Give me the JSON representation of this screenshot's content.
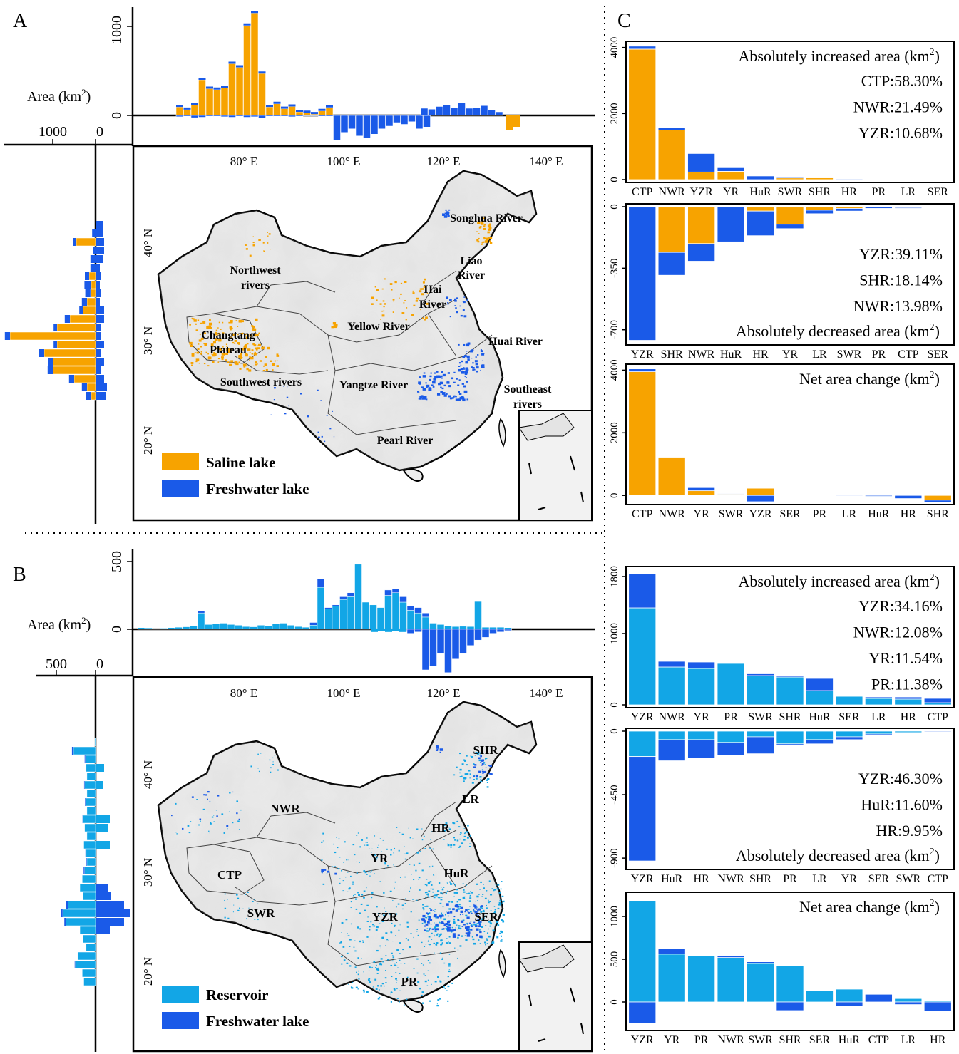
{
  "colors": {
    "saline": "#F7A300",
    "freshwater": "#1A5AE8",
    "reservoir": "#12A6E6",
    "axis": "#000000",
    "map_fill": "#EEEEEE",
    "map_border": "#000000"
  },
  "panel_labels": {
    "a": "A",
    "b": "B",
    "c": "C"
  },
  "area_axis_label": "Area (km",
  "area_axis_sup": "2",
  "area_axis_close": ")",
  "panelA": {
    "top_hist": {
      "ytick_pos": "1000",
      "ytick_zero": "0",
      "x_ticks": [
        "80° E",
        "100° E",
        "120° E",
        "140° E"
      ],
      "pos_saline": [
        95,
        65,
        115,
        400,
        300,
        290,
        310,
        580,
        540,
        1010,
        1150,
        470,
        95,
        130,
        75,
        100,
        40,
        30,
        15,
        50,
        90
      ],
      "pos_fresh": [
        10,
        15,
        20,
        40,
        25,
        20,
        15,
        20,
        30,
        40,
        25,
        25,
        20,
        15,
        15,
        20,
        10,
        10,
        5,
        10,
        15,
        80,
        70,
        100,
        120,
        90,
        140,
        80,
        90,
        110,
        60,
        40
      ],
      "neg_fresh": [
        15,
        10,
        25,
        20,
        10,
        10,
        15,
        20,
        10,
        20,
        15,
        30,
        10,
        10,
        10,
        15,
        10,
        5,
        5,
        10,
        10,
        280,
        190,
        150,
        230,
        250,
        210,
        150,
        120,
        80,
        100,
        70,
        150,
        130
      ]
    },
    "left_hist": {
      "xtick_pos": "1000",
      "xtick_zero": "0"
    },
    "map": {
      "lon_labels": [
        "80° E",
        "100° E",
        "120° E",
        "140° E"
      ],
      "lat_labels": [
        "40° N",
        "30° N",
        "20° N"
      ],
      "regions": [
        "Songhua River",
        "Liao",
        "River",
        "Northwest",
        "rivers",
        "Hai",
        "River",
        "Yellow River",
        "Changtang",
        "Plateau",
        "Huai River",
        "Southwest rivers",
        "Yangtze River",
        "Southeast",
        "rivers",
        "Pearl River"
      ],
      "legend": [
        "Saline lake",
        "Freshwater lake"
      ]
    }
  },
  "panelB": {
    "top_hist": {
      "ytick_pos": "500",
      "ytick_zero": "0",
      "x_ticks": [
        "80° E",
        "100° E",
        "120° E",
        "140° E"
      ]
    },
    "left_hist": {
      "xtick_pos": "500",
      "xtick_zero": "0"
    },
    "map": {
      "lon_labels": [
        "80° E",
        "100° E",
        "120° E",
        "140° E"
      ],
      "lat_labels": [
        "40° N",
        "30° N",
        "20° N"
      ],
      "regions": [
        "SHR",
        "NWR",
        "LR",
        "HR",
        "YR",
        "CTP",
        "HuR",
        "SWR",
        "YZR",
        "SER",
        "PR"
      ],
      "legend": [
        "Reservoir",
        "Freshwater lake"
      ]
    }
  },
  "chart_data": [
    {
      "type": "bar",
      "title": "Absolutely increased area (km2)",
      "ylim": [
        0,
        4100
      ],
      "yticks": [
        "0",
        "2000",
        "4000"
      ],
      "categories": [
        "CTP",
        "NWR",
        "YZR",
        "YR",
        "HuR",
        "SWR",
        "SHR",
        "HR",
        "PR",
        "LR",
        "SER"
      ],
      "series": [
        {
          "name": "Saline lake",
          "values": [
            3950,
            1500,
            230,
            250,
            0,
            50,
            60,
            0,
            0,
            0,
            0
          ]
        },
        {
          "name": "Freshwater lake",
          "values": [
            90,
            80,
            560,
            110,
            110,
            40,
            10,
            20,
            10,
            5,
            5
          ]
        }
      ],
      "annotations": [
        "CTP:58.30%",
        "NWR:21.49%",
        "YZR:10.68%"
      ]
    },
    {
      "type": "bar",
      "title": "Absolutely decreased area (km2)",
      "ylim": [
        -770,
        0
      ],
      "yticks": [
        "0",
        "-350",
        "-700"
      ],
      "categories": [
        "YZR",
        "SHR",
        "NWR",
        "HuR",
        "HR",
        "YR",
        "LR",
        "SWR",
        "PR",
        "CTP",
        "SER"
      ],
      "series": [
        {
          "name": "Saline lake",
          "values": [
            0,
            -260,
            -210,
            0,
            -25,
            -100,
            -20,
            -10,
            0,
            -5,
            0
          ]
        },
        {
          "name": "Freshwater lake",
          "values": [
            -760,
            -130,
            -100,
            -200,
            -140,
            -25,
            -20,
            -15,
            -10,
            -5,
            -5
          ]
        }
      ],
      "annotations": [
        "YZR:39.11%",
        "SHR:18.14%",
        "NWR:13.98%"
      ]
    },
    {
      "type": "bar",
      "title": "Net area change (km2)",
      "ylim": [
        -200,
        4100
      ],
      "yticks": [
        "0",
        "2000",
        "4000"
      ],
      "categories": [
        "CTP",
        "NWR",
        "YR",
        "SWR",
        "YZR",
        "SER",
        "PR",
        "LR",
        "HuR",
        "HR",
        "SHR"
      ],
      "series": [
        {
          "name": "Saline lake",
          "values": [
            3950,
            1230,
            150,
            40,
            230,
            0,
            0,
            0,
            0,
            0,
            -150
          ]
        },
        {
          "name": "Freshwater lake",
          "values": [
            90,
            10,
            100,
            20,
            -200,
            0,
            0,
            -20,
            -30,
            -100,
            -80
          ]
        }
      ],
      "annotations": []
    },
    {
      "type": "bar",
      "title": "Absolutely increased area (km2)",
      "ylim": [
        0,
        1900
      ],
      "yticks": [
        "0",
        "1000",
        "1800"
      ],
      "categories": [
        "YZR",
        "NWR",
        "YR",
        "PR",
        "SWR",
        "SHR",
        "HuR",
        "SER",
        "LR",
        "HR",
        "CTP"
      ],
      "series": [
        {
          "name": "Reservoir",
          "values": [
            1360,
            530,
            510,
            580,
            410,
            390,
            200,
            120,
            90,
            80,
            30
          ]
        },
        {
          "name": "Freshwater lake",
          "values": [
            480,
            80,
            90,
            0,
            25,
            20,
            170,
            10,
            20,
            30,
            60
          ]
        }
      ],
      "annotations": [
        "YZR:34.16%",
        "NWR:12.08%",
        "YR:11.54%",
        "PR:11.38%"
      ]
    },
    {
      "type": "bar",
      "title": "Absolutely decreased area (km2)",
      "ylim": [
        -960,
        0
      ],
      "yticks": [
        "0",
        "-450",
        "-900"
      ],
      "categories": [
        "YZR",
        "HuR",
        "HR",
        "NWR",
        "SHR",
        "PR",
        "LR",
        "YR",
        "SER",
        "SWR",
        "CTP"
      ],
      "series": [
        {
          "name": "Reservoir",
          "values": [
            -180,
            -60,
            -60,
            -80,
            -40,
            -90,
            -60,
            -40,
            -20,
            -10,
            0
          ]
        },
        {
          "name": "Freshwater lake",
          "values": [
            -740,
            -150,
            -130,
            -90,
            -120,
            -10,
            -30,
            -20,
            -10,
            -5,
            -5
          ]
        }
      ],
      "annotations": [
        "YZR:46.30%",
        "HuR:11.60%",
        "HR:9.95%"
      ]
    },
    {
      "type": "bar",
      "title": "Net area change (km2)",
      "ylim": [
        -300,
        1250
      ],
      "yticks": [
        "0",
        "500",
        "1000"
      ],
      "categories": [
        "YZR",
        "YR",
        "PR",
        "NWR",
        "SWR",
        "SHR",
        "SER",
        "HuR",
        "CTP",
        "LR",
        "HR"
      ],
      "series": [
        {
          "name": "Reservoir",
          "values": [
            1180,
            560,
            540,
            520,
            450,
            420,
            130,
            150,
            0,
            40,
            20
          ]
        },
        {
          "name": "Freshwater lake",
          "values": [
            -250,
            60,
            0,
            20,
            20,
            -100,
            0,
            -50,
            90,
            -30,
            -110
          ]
        }
      ],
      "annotations": []
    }
  ]
}
